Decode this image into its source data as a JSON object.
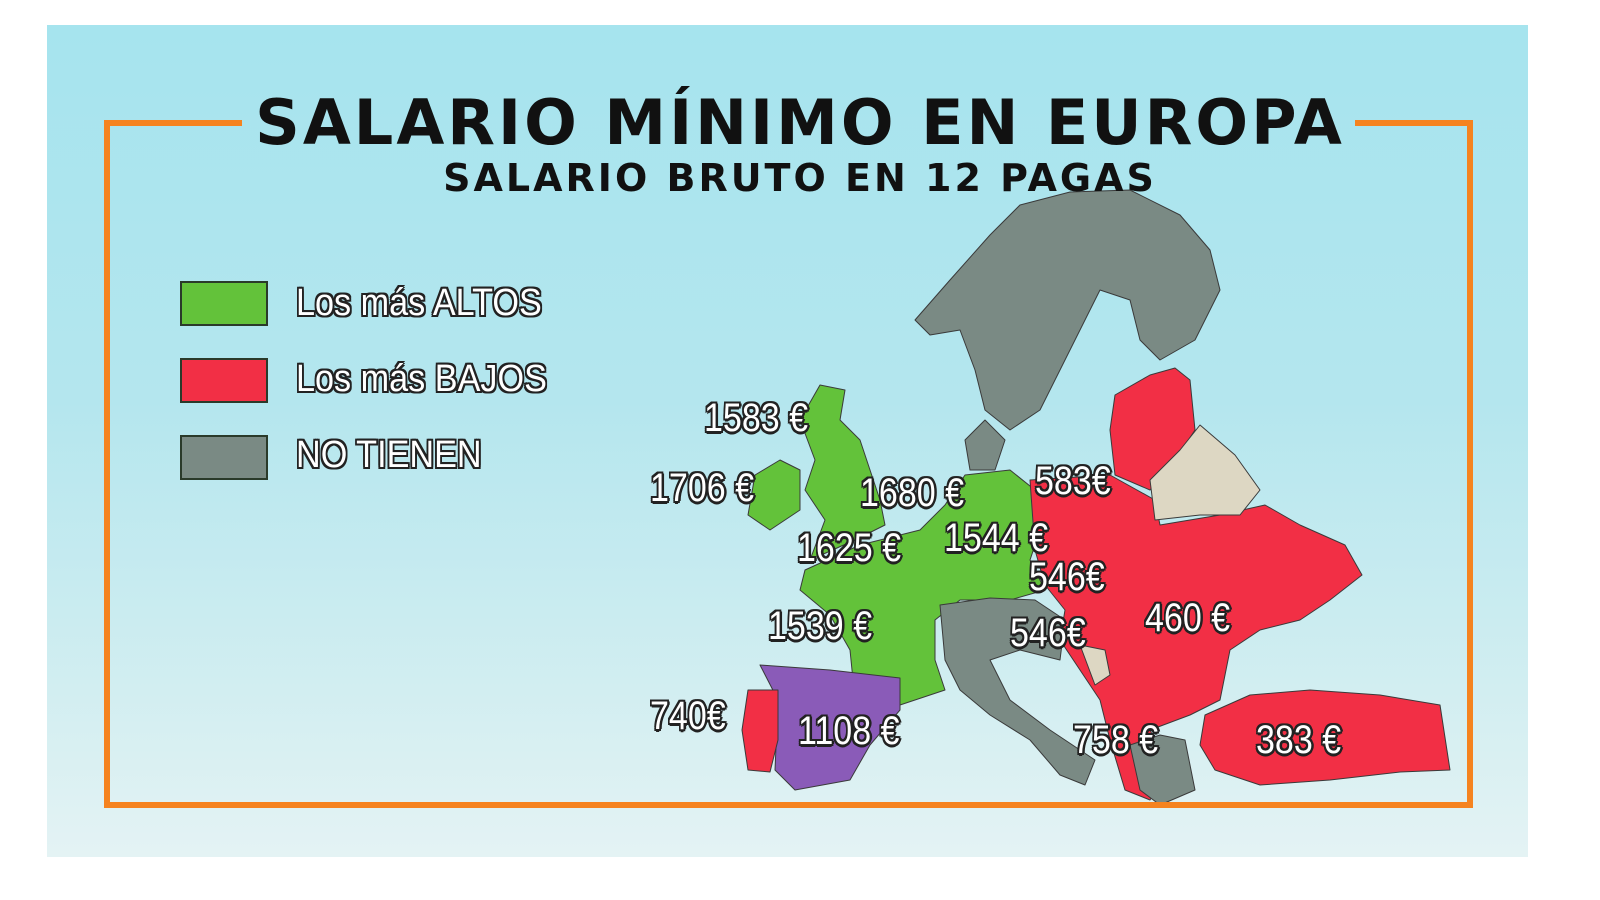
{
  "header": {
    "title": "SALARIO MÍNIMO EN EUROPA",
    "subtitle": "SALARIO BRUTO EN 12 PAGAS"
  },
  "legend": [
    {
      "label": "Los más ALTOS",
      "color": "#63c23a"
    },
    {
      "label": "Los más BAJOS",
      "color": "#f22f45"
    },
    {
      "label": "NO TIENEN",
      "color": "#7a8a84"
    }
  ],
  "colors": {
    "frame": "#f5831f",
    "highest": "#63c23a",
    "lowest": "#f22f45",
    "none": "#7a8a84",
    "spain": "#8a5bb8",
    "other": "#ddd7c3"
  },
  "map_labels": {
    "uk_north": "1583 €",
    "ireland": "1706 €",
    "netherlands": "1680 €",
    "belgium": "1625 €",
    "germany": "1544 €",
    "france": "1539 €",
    "portugal": "740€",
    "spain": "1108 €",
    "poland": "583€",
    "czech": "546€",
    "croatia": "546€",
    "romania": "460 €",
    "greece": "758 €",
    "turkey": "383 €"
  }
}
